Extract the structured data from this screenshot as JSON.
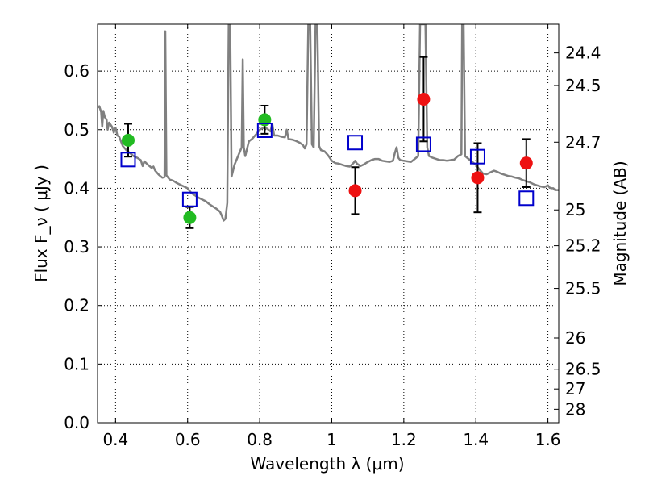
{
  "chart_data": {
    "type": "scatter",
    "xlabel": "Wavelength  λ (μm)",
    "ylabel": "Flux  F_ν  ( μJy )",
    "ylabel_right": "Magnitude (AB)",
    "xlim": [
      0.35,
      1.63
    ],
    "ylim": [
      0.0,
      0.68
    ],
    "grid": true,
    "x_ticks": [
      0.4,
      0.6,
      0.8,
      1.0,
      1.2,
      1.4,
      1.6
    ],
    "x_tick_labels": [
      "0.4",
      "0.6",
      "0.8",
      "1",
      "1.2",
      "1.4",
      "1.6"
    ],
    "y_ticks": [
      0.0,
      0.1,
      0.2,
      0.3,
      0.4,
      0.5,
      0.6
    ],
    "y_tick_labels": [
      "0.0",
      "0.1",
      "0.2",
      "0.3",
      "0.4",
      "0.5",
      "0.6"
    ],
    "right_tick_labels": [
      "24.4",
      "24.5",
      "24.7",
      "25",
      "25.2",
      "25.5",
      "26",
      "26.5",
      "27",
      "28"
    ],
    "right_tick_mags": [
      24.4,
      24.5,
      24.7,
      25.0,
      25.2,
      25.5,
      26.0,
      26.5,
      27.0,
      28.0
    ],
    "colors": {
      "model": "#808080",
      "green": "#22bb22",
      "red": "#ee1111",
      "square": "#0000cc",
      "error": "#000000",
      "grid": "#000000"
    },
    "series": [
      {
        "marker": "circle",
        "color": "green",
        "points": [
          {
            "x": 0.435,
            "y": 0.482,
            "err": 0.028
          },
          {
            "x": 0.606,
            "y": 0.35,
            "err": 0.018
          },
          {
            "x": 0.814,
            "y": 0.517,
            "err": 0.024
          }
        ]
      },
      {
        "marker": "circle",
        "color": "red",
        "points": [
          {
            "x": 1.065,
            "y": 0.396,
            "err": 0.04
          },
          {
            "x": 1.255,
            "y": 0.552,
            "err": 0.072
          },
          {
            "x": 1.405,
            "y": 0.418,
            "err": 0.059
          },
          {
            "x": 1.54,
            "y": 0.443,
            "err": 0.041
          }
        ]
      },
      {
        "marker": "square",
        "color": "square",
        "points": [
          {
            "x": 0.435,
            "y": 0.449
          },
          {
            "x": 0.606,
            "y": 0.381
          },
          {
            "x": 0.814,
            "y": 0.499
          },
          {
            "x": 1.065,
            "y": 0.478
          },
          {
            "x": 1.255,
            "y": 0.475
          },
          {
            "x": 1.405,
            "y": 0.454
          },
          {
            "x": 1.54,
            "y": 0.383
          }
        ]
      }
    ],
    "model_spectrum": [
      [
        0.35,
        0.538
      ],
      [
        0.355,
        0.54
      ],
      [
        0.36,
        0.53
      ],
      [
        0.363,
        0.505
      ],
      [
        0.366,
        0.532
      ],
      [
        0.37,
        0.522
      ],
      [
        0.375,
        0.517
      ],
      [
        0.378,
        0.5
      ],
      [
        0.382,
        0.512
      ],
      [
        0.39,
        0.505
      ],
      [
        0.395,
        0.495
      ],
      [
        0.4,
        0.503
      ],
      [
        0.405,
        0.49
      ],
      [
        0.41,
        0.488
      ],
      [
        0.42,
        0.472
      ],
      [
        0.43,
        0.465
      ],
      [
        0.44,
        0.46
      ],
      [
        0.45,
        0.455
      ],
      [
        0.46,
        0.452
      ],
      [
        0.47,
        0.448
      ],
      [
        0.475,
        0.438
      ],
      [
        0.48,
        0.446
      ],
      [
        0.49,
        0.44
      ],
      [
        0.5,
        0.435
      ],
      [
        0.505,
        0.437
      ],
      [
        0.51,
        0.43
      ],
      [
        0.52,
        0.423
      ],
      [
        0.53,
        0.418
      ],
      [
        0.536,
        0.419
      ],
      [
        0.538,
        0.668
      ],
      [
        0.541,
        0.422
      ],
      [
        0.55,
        0.415
      ],
      [
        0.56,
        0.413
      ],
      [
        0.57,
        0.409
      ],
      [
        0.58,
        0.406
      ],
      [
        0.59,
        0.403
      ],
      [
        0.6,
        0.4
      ],
      [
        0.61,
        0.392
      ],
      [
        0.62,
        0.388
      ],
      [
        0.63,
        0.384
      ],
      [
        0.64,
        0.381
      ],
      [
        0.65,
        0.378
      ],
      [
        0.66,
        0.373
      ],
      [
        0.67,
        0.369
      ],
      [
        0.68,
        0.365
      ],
      [
        0.69,
        0.36
      ],
      [
        0.695,
        0.353
      ],
      [
        0.7,
        0.345
      ],
      [
        0.705,
        0.348
      ],
      [
        0.71,
        0.375
      ],
      [
        0.714,
        0.68
      ],
      [
        0.718,
        0.68
      ],
      [
        0.722,
        0.42
      ],
      [
        0.73,
        0.44
      ],
      [
        0.74,
        0.455
      ],
      [
        0.75,
        0.47
      ],
      [
        0.753,
        0.62
      ],
      [
        0.756,
        0.47
      ],
      [
        0.76,
        0.455
      ],
      [
        0.77,
        0.48
      ],
      [
        0.78,
        0.485
      ],
      [
        0.79,
        0.492
      ],
      [
        0.8,
        0.5
      ],
      [
        0.81,
        0.503
      ],
      [
        0.82,
        0.502
      ],
      [
        0.83,
        0.497
      ],
      [
        0.835,
        0.51
      ],
      [
        0.84,
        0.49
      ],
      [
        0.85,
        0.49
      ],
      [
        0.86,
        0.488
      ],
      [
        0.87,
        0.487
      ],
      [
        0.875,
        0.5
      ],
      [
        0.88,
        0.484
      ],
      [
        0.89,
        0.483
      ],
      [
        0.9,
        0.481
      ],
      [
        0.91,
        0.478
      ],
      [
        0.92,
        0.474
      ],
      [
        0.925,
        0.468
      ],
      [
        0.93,
        0.475
      ],
      [
        0.935,
        0.68
      ],
      [
        0.94,
        0.68
      ],
      [
        0.945,
        0.475
      ],
      [
        0.95,
        0.47
      ],
      [
        0.955,
        0.68
      ],
      [
        0.96,
        0.68
      ],
      [
        0.965,
        0.472
      ],
      [
        0.97,
        0.465
      ],
      [
        0.98,
        0.463
      ],
      [
        0.99,
        0.456
      ],
      [
        1.0,
        0.447
      ],
      [
        1.01,
        0.443
      ],
      [
        1.02,
        0.442
      ],
      [
        1.03,
        0.44
      ],
      [
        1.04,
        0.438
      ],
      [
        1.05,
        0.437
      ],
      [
        1.06,
        0.443
      ],
      [
        1.065,
        0.447
      ],
      [
        1.07,
        0.442
      ],
      [
        1.08,
        0.438
      ],
      [
        1.09,
        0.441
      ],
      [
        1.1,
        0.445
      ],
      [
        1.11,
        0.448
      ],
      [
        1.12,
        0.45
      ],
      [
        1.13,
        0.45
      ],
      [
        1.14,
        0.447
      ],
      [
        1.15,
        0.446
      ],
      [
        1.16,
        0.445
      ],
      [
        1.17,
        0.447
      ],
      [
        1.175,
        0.46
      ],
      [
        1.18,
        0.47
      ],
      [
        1.185,
        0.452
      ],
      [
        1.19,
        0.448
      ],
      [
        1.2,
        0.447
      ],
      [
        1.21,
        0.446
      ],
      [
        1.22,
        0.445
      ],
      [
        1.23,
        0.45
      ],
      [
        1.24,
        0.455
      ],
      [
        1.245,
        0.68
      ],
      [
        1.255,
        0.68
      ],
      [
        1.26,
        0.68
      ],
      [
        1.265,
        0.47
      ],
      [
        1.27,
        0.455
      ],
      [
        1.28,
        0.452
      ],
      [
        1.29,
        0.45
      ],
      [
        1.3,
        0.448
      ],
      [
        1.31,
        0.448
      ],
      [
        1.32,
        0.447
      ],
      [
        1.33,
        0.448
      ],
      [
        1.34,
        0.449
      ],
      [
        1.35,
        0.455
      ],
      [
        1.36,
        0.458
      ],
      [
        1.362,
        0.68
      ],
      [
        1.366,
        0.68
      ],
      [
        1.37,
        0.455
      ],
      [
        1.38,
        0.45
      ],
      [
        1.39,
        0.445
      ],
      [
        1.4,
        0.44
      ],
      [
        1.41,
        0.432
      ],
      [
        1.42,
        0.425
      ],
      [
        1.43,
        0.424
      ],
      [
        1.44,
        0.427
      ],
      [
        1.45,
        0.43
      ],
      [
        1.46,
        0.428
      ],
      [
        1.47,
        0.425
      ],
      [
        1.48,
        0.423
      ],
      [
        1.49,
        0.421
      ],
      [
        1.5,
        0.42
      ],
      [
        1.51,
        0.418
      ],
      [
        1.52,
        0.417
      ],
      [
        1.53,
        0.414
      ],
      [
        1.54,
        0.412
      ],
      [
        1.55,
        0.41
      ],
      [
        1.56,
        0.407
      ],
      [
        1.57,
        0.405
      ],
      [
        1.58,
        0.403
      ],
      [
        1.59,
        0.402
      ],
      [
        1.6,
        0.405
      ],
      [
        1.605,
        0.401
      ],
      [
        1.61,
        0.4
      ],
      [
        1.615,
        0.4
      ],
      [
        1.62,
        0.397
      ],
      [
        1.63,
        0.397
      ]
    ]
  }
}
